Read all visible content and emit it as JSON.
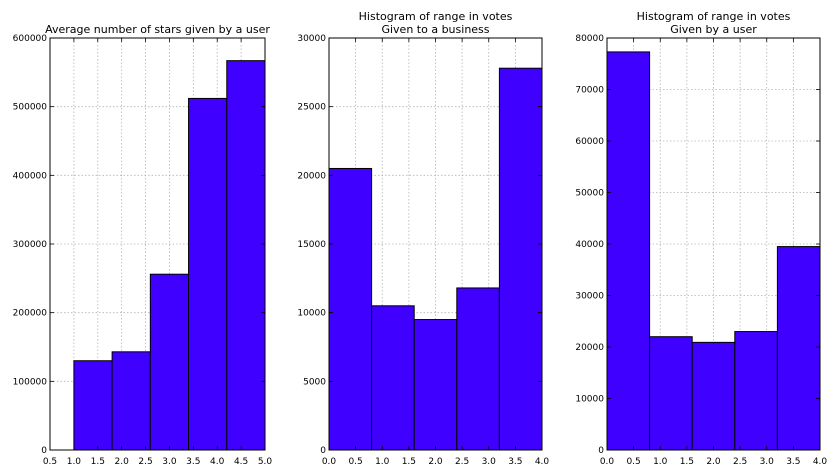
{
  "figure": {
    "background": "#ffffff",
    "bar_color": "#4000ff",
    "bar_edge_color": "#000000",
    "grid_color": "#b4b4b4"
  },
  "chart_data": [
    {
      "type": "bar",
      "title_lines": [
        "Average number of stars given by a user"
      ],
      "xlabel": "",
      "ylabel": "",
      "xlim": [
        0.5,
        5.0
      ],
      "ylim": [
        0,
        600000
      ],
      "grid": true,
      "xticks": [
        "0.5",
        "1.0",
        "1.5",
        "2.0",
        "2.5",
        "3.0",
        "3.5",
        "4.0",
        "4.5",
        "5.0"
      ],
      "yticks": [
        "0",
        "100000",
        "200000",
        "300000",
        "400000",
        "500000",
        "600000"
      ],
      "bins": [
        [
          1.0,
          1.8
        ],
        [
          1.8,
          2.6
        ],
        [
          2.6,
          3.4
        ],
        [
          3.4,
          4.2
        ],
        [
          4.2,
          5.0
        ]
      ],
      "values": [
        130000,
        143000,
        256000,
        512000,
        567000
      ]
    },
    {
      "type": "bar",
      "title_lines": [
        "Histogram of range in votes",
        "Given to a business"
      ],
      "xlabel": "",
      "ylabel": "",
      "xlim": [
        0.0,
        4.0
      ],
      "ylim": [
        0,
        30000
      ],
      "grid": true,
      "xticks": [
        "0.0",
        "0.5",
        "1.0",
        "1.5",
        "2.0",
        "2.5",
        "3.0",
        "3.5",
        "4.0"
      ],
      "yticks": [
        "0",
        "5000",
        "10000",
        "15000",
        "20000",
        "25000",
        "30000"
      ],
      "bins": [
        [
          0.0,
          0.8
        ],
        [
          0.8,
          1.6
        ],
        [
          1.6,
          2.4
        ],
        [
          2.4,
          3.2
        ],
        [
          3.2,
          4.0
        ]
      ],
      "values": [
        20500,
        10500,
        9500,
        11800,
        27800
      ]
    },
    {
      "type": "bar",
      "title_lines": [
        "Histogram of range in votes",
        "Given by a user"
      ],
      "xlabel": "",
      "ylabel": "",
      "xlim": [
        0.0,
        4.0
      ],
      "ylim": [
        0,
        80000
      ],
      "grid": true,
      "xticks": [
        "0.0",
        "0.5",
        "1.0",
        "1.5",
        "2.0",
        "2.5",
        "3.0",
        "3.5",
        "4.0"
      ],
      "yticks": [
        "0",
        "10000",
        "20000",
        "30000",
        "40000",
        "50000",
        "60000",
        "70000",
        "80000"
      ],
      "bins": [
        [
          0.0,
          0.8
        ],
        [
          0.8,
          1.6
        ],
        [
          1.6,
          2.4
        ],
        [
          2.4,
          3.2
        ],
        [
          3.2,
          4.0
        ]
      ],
      "values": [
        77300,
        22000,
        20900,
        23000,
        39500
      ]
    }
  ]
}
